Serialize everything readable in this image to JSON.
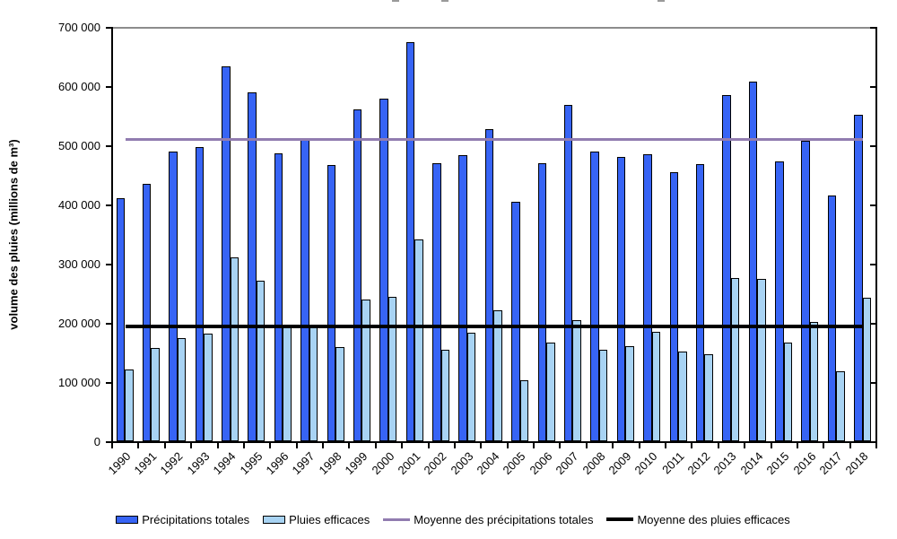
{
  "chart_data": {
    "type": "bar",
    "title": "",
    "ylabel": "volume des pluies (millions de m³)",
    "xlabel": "",
    "grid": false,
    "legend_position": "bottom",
    "x_tick_rotation": -45,
    "y_axis": {
      "min": 0,
      "max": 700000,
      "step": 100000,
      "tick_labels": [
        "0",
        "100 000",
        "200 000",
        "300 000",
        "400 000",
        "500 000",
        "600 000",
        "700 000"
      ]
    },
    "categories": [
      "1990",
      "1991",
      "1992",
      "1993",
      "1994",
      "1995",
      "1996",
      "1997",
      "1998",
      "1999",
      "2000",
      "2001",
      "2002",
      "2003",
      "2004",
      "2005",
      "2006",
      "2007",
      "2008",
      "2009",
      "2010",
      "2011",
      "2012",
      "2013",
      "2014",
      "2015",
      "2016",
      "2017",
      "2018"
    ],
    "series": [
      {
        "name": "Précipitations totales",
        "color": "#3764F5",
        "values": [
          410000,
          435000,
          489000,
          497000,
          633000,
          589000,
          487000,
          511000,
          466000,
          561000,
          579000,
          674000,
          470000,
          484000,
          528000,
          404000,
          470000,
          568000,
          490000,
          480000,
          485000,
          454000,
          468000,
          585000,
          607000,
          473000,
          508000,
          415000,
          552000
        ]
      },
      {
        "name": "Pluies efficaces",
        "color": "#A8D3F3",
        "values": [
          121000,
          158000,
          175000,
          182000,
          310000,
          272000,
          195000,
          195000,
          159000,
          239000,
          244000,
          341000,
          154000,
          184000,
          221000,
          103000,
          166000,
          204000,
          154000,
          161000,
          185000,
          152000,
          147000,
          276000,
          274000,
          167000,
          202000,
          118000,
          243000
        ]
      }
    ],
    "lines": [
      {
        "name": "Moyenne des précipitations totales",
        "color": "#917CB0",
        "value": 511000,
        "thickness": 3
      },
      {
        "name": "Moyenne des pluies efficaces",
        "color": "#000000",
        "value": 195000,
        "thickness": 4
      }
    ]
  }
}
